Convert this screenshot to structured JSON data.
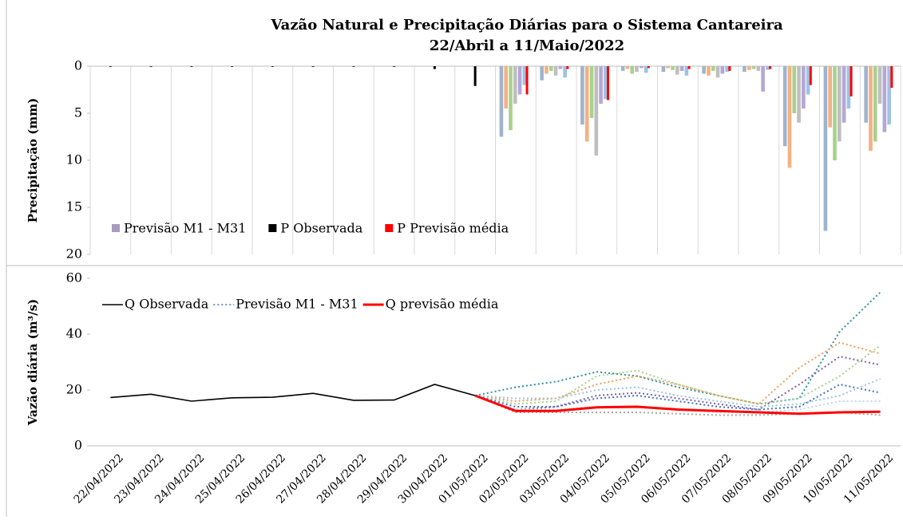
{
  "chart_data": [
    {
      "type": "bar",
      "title": "Vazão Natural e Precipitação Diárias para o Sistema Cantareira",
      "subtitle": "22/Abril a 11/Maio/2022",
      "ylabel": "Precipitação (mm)",
      "ylim": [
        0,
        20
      ],
      "yticks": [
        0,
        5,
        10,
        15,
        20
      ],
      "y_inverted": true,
      "grid_x": true,
      "series": [
        {
          "name": "Previsão M1 - M31",
          "color": "#a99bbd",
          "members": [
            {
              "color": "#9fb4cc",
              "values": [
                null,
                null,
                null,
                null,
                null,
                null,
                null,
                null,
                null,
                null,
                7.5,
                1.5,
                6.2,
                0.5,
                0.6,
                0.8,
                0.6,
                8.5,
                17.5,
                6.0
              ]
            },
            {
              "color": "#f4b183",
              "values": [
                null,
                null,
                null,
                null,
                null,
                null,
                null,
                null,
                null,
                null,
                4.5,
                0.8,
                8.0,
                0.3,
                0.2,
                1.0,
                0.4,
                10.8,
                6.5,
                9.0
              ]
            },
            {
              "color": "#a9d18e",
              "values": [
                null,
                null,
                null,
                null,
                null,
                null,
                null,
                null,
                null,
                null,
                6.8,
                0.5,
                5.5,
                0.8,
                0.4,
                0.5,
                0.3,
                5.0,
                10.0,
                8.0
              ]
            },
            {
              "color": "#bfbfbf",
              "values": [
                null,
                null,
                null,
                null,
                null,
                null,
                null,
                null,
                null,
                null,
                4.0,
                1.0,
                9.5,
                0.6,
                0.9,
                1.2,
                0.5,
                6.0,
                8.0,
                4.0
              ]
            },
            {
              "color": "#b4a7d6",
              "values": [
                null,
                null,
                null,
                null,
                null,
                null,
                null,
                null,
                null,
                null,
                3.0,
                0.3,
                4.0,
                0.2,
                0.5,
                0.8,
                2.7,
                4.5,
                6.0,
                7.0
              ]
            },
            {
              "color": "#9dc3e6",
              "values": [
                null,
                null,
                null,
                null,
                null,
                null,
                null,
                null,
                null,
                null,
                2.0,
                1.2,
                3.5,
                0.7,
                1.0,
                0.6,
                0.4,
                3.0,
                4.5,
                6.2
              ]
            }
          ]
        },
        {
          "name": "P Observada",
          "color": "#000000",
          "values": [
            0,
            0,
            0,
            0,
            0,
            0,
            0,
            0,
            0.3,
            2.1,
            null,
            null,
            null,
            null,
            null,
            null,
            null,
            null,
            null,
            null
          ]
        },
        {
          "name": "P Previsão média",
          "color": "#ff0000",
          "values": [
            null,
            null,
            null,
            null,
            null,
            null,
            null,
            null,
            null,
            null,
            3.0,
            0.3,
            3.6,
            0.2,
            0.3,
            0.5,
            0.3,
            2.0,
            3.2,
            2.3
          ]
        }
      ]
    },
    {
      "type": "line",
      "ylabel": "Vazão diária (m³/s)",
      "ylim": [
        0,
        60
      ],
      "yticks": [
        0,
        20,
        40,
        60
      ],
      "categories": [
        "22/04/2022",
        "23/04/2022",
        "24/04/2022",
        "25/04/2022",
        "26/04/2022",
        "27/04/2022",
        "28/04/2022",
        "29/04/2022",
        "30/04/2022",
        "01/05/2022",
        "02/05/2022",
        "03/05/2022",
        "04/05/2022",
        "05/05/2022",
        "06/05/2022",
        "07/05/2022",
        "08/05/2022",
        "09/05/2022",
        "10/05/2022",
        "11/05/2022"
      ],
      "series": [
        {
          "name": "Q Observada",
          "color": "#000000",
          "dash": "solid",
          "values": [
            17.3,
            18.5,
            16.0,
            17.2,
            17.4,
            18.8,
            16.3,
            16.4,
            22.0,
            18.0,
            null,
            null,
            null,
            null,
            null,
            null,
            null,
            null,
            null,
            null
          ]
        },
        {
          "name": "Previsão M1 - M31",
          "color": "#4472c4",
          "dash": "dotted",
          "members": [
            {
              "color": "#2e8fa3",
              "values": [
                null,
                null,
                null,
                null,
                null,
                null,
                null,
                null,
                null,
                18,
                21,
                23,
                26.5,
                25,
                21,
                18,
                15,
                17,
                41,
                55
              ]
            },
            {
              "color": "#ed9e5a",
              "values": [
                null,
                null,
                null,
                null,
                null,
                null,
                null,
                null,
                null,
                18,
                16,
                17,
                22,
                25,
                22,
                18,
                15,
                28,
                37,
                33
              ]
            },
            {
              "color": "#7a5fa8",
              "values": [
                null,
                null,
                null,
                null,
                null,
                null,
                null,
                null,
                null,
                18,
                13,
                14,
                18,
                19,
                17,
                15,
                13,
                22,
                32,
                29
              ]
            },
            {
              "color": "#a9d18e",
              "values": [
                null,
                null,
                null,
                null,
                null,
                null,
                null,
                null,
                null,
                18,
                15,
                16,
                25,
                27,
                22,
                18,
                15,
                17,
                25,
                36
              ]
            },
            {
              "color": "#4472c4",
              "values": [
                null,
                null,
                null,
                null,
                null,
                null,
                null,
                null,
                null,
                18,
                14,
                14,
                17,
                18,
                16,
                14,
                13,
                14,
                22,
                19
              ]
            },
            {
              "color": "#bdd7ee",
              "values": [
                null,
                null,
                null,
                null,
                null,
                null,
                null,
                null,
                null,
                18,
                13,
                13,
                14,
                14,
                13,
                12,
                12,
                13,
                16,
                16
              ]
            },
            {
              "color": "#a6a6a6",
              "values": [
                null,
                null,
                null,
                null,
                null,
                null,
                null,
                null,
                null,
                18,
                12,
                12,
                12,
                12,
                11.5,
                11,
                11,
                11.5,
                12,
                11
              ]
            },
            {
              "color": "#9dc3e6",
              "values": [
                null,
                null,
                null,
                null,
                null,
                null,
                null,
                null,
                null,
                18,
                17,
                17,
                20,
                21,
                18,
                16,
                14,
                15,
                18,
                24
              ]
            }
          ]
        },
        {
          "name": "Q previsão média",
          "color": "#ff0000",
          "dash": "solid",
          "values": [
            null,
            null,
            null,
            null,
            null,
            null,
            null,
            null,
            null,
            18.0,
            12.5,
            12.5,
            13.8,
            14.0,
            13.0,
            12.5,
            12.0,
            11.5,
            12.0,
            12.2
          ]
        }
      ]
    }
  ]
}
